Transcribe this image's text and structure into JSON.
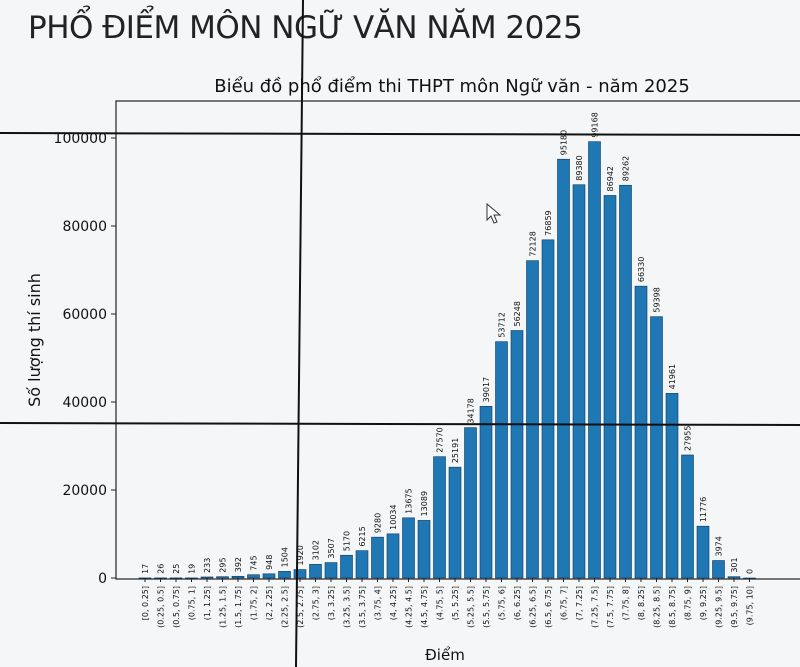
{
  "page_title": "PHỔ ĐIỂM MÔN NGỮ VĂN NĂM 2025",
  "chart_data": {
    "type": "bar",
    "title": "Biểu đồ phổ điểm thi THPT môn Ngữ văn - năm 2025",
    "xlabel": "Điểm",
    "ylabel": "Số lượng thí sinh",
    "ylim": [
      0,
      100000
    ],
    "yticks": [
      "0",
      "20000",
      "40000",
      "60000",
      "80000",
      "100000"
    ],
    "ytick_values": [
      0,
      20000,
      40000,
      60000,
      80000,
      100000
    ],
    "grid": false,
    "bar_color": "#1f77b4",
    "categories": [
      "[0, 0.25]",
      "(0.25, 0.5]",
      "(0.5, 0.75]",
      "(0.75, 1]",
      "(1, 1.25]",
      "(1.25, 1.5]",
      "(1.5, 1.75]",
      "(1.75, 2]",
      "(2, 2.25]",
      "(2.25, 2.5]",
      "(2.5, 2.75]",
      "(2.75, 3]",
      "(3, 3.25]",
      "(3.25, 3.5]",
      "(3.5, 3.75]",
      "(3.75, 4]",
      "(4, 4.25]",
      "(4.25, 4.5]",
      "(4.5, 4.75]",
      "(4.75, 5]",
      "(5, 5.25]",
      "(5.25, 5.5]",
      "(5.5, 5.75]",
      "(5.75, 6]",
      "(6, 6.25]",
      "(6.25, 6.5]",
      "(6.5, 6.75]",
      "(6.75, 7]",
      "(7, 7.25]",
      "(7.25, 7.5]",
      "(7.5, 7.75]",
      "(7.75, 8]",
      "(8, 8.25]",
      "(8.25, 8.5]",
      "(8.5, 8.75]",
      "(8.75, 9]",
      "(9, 9.25]",
      "(9.25, 9.5]",
      "(9.5, 9.75]",
      "(9.75, 10]"
    ],
    "values": [
      17,
      26,
      25,
      19,
      233,
      295,
      392,
      745,
      948,
      1504,
      1920,
      3102,
      3507,
      5170,
      6215,
      9280,
      10034,
      13675,
      13089,
      27570,
      25191,
      34178,
      39017,
      53712,
      56248,
      72128,
      76859,
      95180,
      89380,
      99168,
      86942,
      89262,
      66330,
      59398,
      41961,
      27955,
      11776,
      3974,
      301,
      0
    ]
  }
}
